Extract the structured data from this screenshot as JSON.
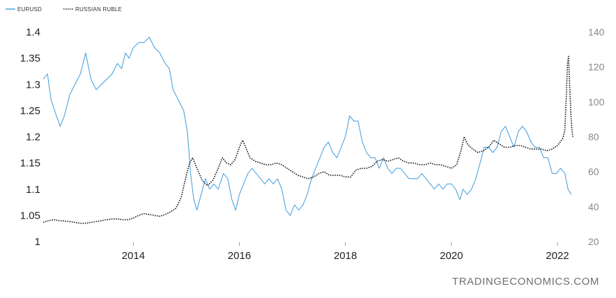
{
  "watermark": "TRADINGECONOMICS.COM",
  "chart_data": {
    "type": "line",
    "xlim": [
      2012.3,
      2022.5
    ],
    "x_ticks": [
      "2014",
      "2016",
      "2018",
      "2020",
      "2022"
    ],
    "y_left": {
      "ylim": [
        1.0,
        1.4
      ],
      "ticks": [
        "1",
        "1.05",
        "1.1",
        "1.15",
        "1.2",
        "1.25",
        "1.3",
        "1.35",
        "1.4"
      ]
    },
    "y_right": {
      "ylim": [
        20,
        140
      ],
      "ticks": [
        "20",
        "40",
        "60",
        "80",
        "100",
        "120",
        "140"
      ]
    },
    "grid": false,
    "legend_position": "top-left",
    "series": [
      {
        "name": "EURUSD",
        "axis": "left",
        "color": "#4da3e0",
        "style": "solid",
        "points": [
          [
            2012.3,
            1.31
          ],
          [
            2012.38,
            1.32
          ],
          [
            2012.45,
            1.27
          ],
          [
            2012.55,
            1.24
          ],
          [
            2012.62,
            1.22
          ],
          [
            2012.7,
            1.24
          ],
          [
            2012.8,
            1.28
          ],
          [
            2012.9,
            1.3
          ],
          [
            2013.0,
            1.32
          ],
          [
            2013.1,
            1.36
          ],
          [
            2013.2,
            1.31
          ],
          [
            2013.3,
            1.29
          ],
          [
            2013.4,
            1.3
          ],
          [
            2013.5,
            1.31
          ],
          [
            2013.6,
            1.32
          ],
          [
            2013.7,
            1.34
          ],
          [
            2013.78,
            1.33
          ],
          [
            2013.85,
            1.36
          ],
          [
            2013.92,
            1.35
          ],
          [
            2014.0,
            1.37
          ],
          [
            2014.1,
            1.38
          ],
          [
            2014.2,
            1.38
          ],
          [
            2014.3,
            1.39
          ],
          [
            2014.4,
            1.37
          ],
          [
            2014.5,
            1.36
          ],
          [
            2014.6,
            1.34
          ],
          [
            2014.68,
            1.33
          ],
          [
            2014.75,
            1.29
          ],
          [
            2014.85,
            1.27
          ],
          [
            2014.95,
            1.25
          ],
          [
            2015.02,
            1.21
          ],
          [
            2015.08,
            1.13
          ],
          [
            2015.14,
            1.08
          ],
          [
            2015.2,
            1.06
          ],
          [
            2015.28,
            1.09
          ],
          [
            2015.36,
            1.12
          ],
          [
            2015.44,
            1.1
          ],
          [
            2015.52,
            1.11
          ],
          [
            2015.6,
            1.1
          ],
          [
            2015.7,
            1.13
          ],
          [
            2015.78,
            1.12
          ],
          [
            2015.86,
            1.08
          ],
          [
            2015.93,
            1.06
          ],
          [
            2016.0,
            1.09
          ],
          [
            2016.08,
            1.11
          ],
          [
            2016.16,
            1.13
          ],
          [
            2016.24,
            1.14
          ],
          [
            2016.32,
            1.13
          ],
          [
            2016.4,
            1.12
          ],
          [
            2016.48,
            1.11
          ],
          [
            2016.56,
            1.12
          ],
          [
            2016.64,
            1.11
          ],
          [
            2016.72,
            1.12
          ],
          [
            2016.8,
            1.1
          ],
          [
            2016.88,
            1.06
          ],
          [
            2016.96,
            1.05
          ],
          [
            2017.04,
            1.07
          ],
          [
            2017.12,
            1.06
          ],
          [
            2017.2,
            1.07
          ],
          [
            2017.28,
            1.09
          ],
          [
            2017.36,
            1.12
          ],
          [
            2017.44,
            1.14
          ],
          [
            2017.52,
            1.16
          ],
          [
            2017.6,
            1.18
          ],
          [
            2017.68,
            1.19
          ],
          [
            2017.76,
            1.17
          ],
          [
            2017.84,
            1.16
          ],
          [
            2017.92,
            1.18
          ],
          [
            2018.0,
            1.2
          ],
          [
            2018.08,
            1.24
          ],
          [
            2018.16,
            1.23
          ],
          [
            2018.24,
            1.23
          ],
          [
            2018.32,
            1.19
          ],
          [
            2018.4,
            1.17
          ],
          [
            2018.48,
            1.16
          ],
          [
            2018.56,
            1.16
          ],
          [
            2018.64,
            1.14
          ],
          [
            2018.72,
            1.16
          ],
          [
            2018.8,
            1.14
          ],
          [
            2018.88,
            1.13
          ],
          [
            2018.96,
            1.14
          ],
          [
            2019.04,
            1.14
          ],
          [
            2019.12,
            1.13
          ],
          [
            2019.2,
            1.12
          ],
          [
            2019.28,
            1.12
          ],
          [
            2019.36,
            1.12
          ],
          [
            2019.44,
            1.13
          ],
          [
            2019.52,
            1.12
          ],
          [
            2019.6,
            1.11
          ],
          [
            2019.68,
            1.1
          ],
          [
            2019.76,
            1.11
          ],
          [
            2019.84,
            1.1
          ],
          [
            2019.92,
            1.11
          ],
          [
            2020.0,
            1.11
          ],
          [
            2020.08,
            1.1
          ],
          [
            2020.16,
            1.08
          ],
          [
            2020.22,
            1.1
          ],
          [
            2020.3,
            1.09
          ],
          [
            2020.38,
            1.1
          ],
          [
            2020.46,
            1.12
          ],
          [
            2020.54,
            1.15
          ],
          [
            2020.62,
            1.18
          ],
          [
            2020.7,
            1.18
          ],
          [
            2020.78,
            1.17
          ],
          [
            2020.86,
            1.18
          ],
          [
            2020.94,
            1.21
          ],
          [
            2021.02,
            1.22
          ],
          [
            2021.1,
            1.2
          ],
          [
            2021.18,
            1.18
          ],
          [
            2021.26,
            1.21
          ],
          [
            2021.34,
            1.22
          ],
          [
            2021.42,
            1.21
          ],
          [
            2021.5,
            1.19
          ],
          [
            2021.58,
            1.18
          ],
          [
            2021.66,
            1.18
          ],
          [
            2021.74,
            1.16
          ],
          [
            2021.82,
            1.16
          ],
          [
            2021.9,
            1.13
          ],
          [
            2021.98,
            1.13
          ],
          [
            2022.06,
            1.14
          ],
          [
            2022.14,
            1.13
          ],
          [
            2022.2,
            1.1
          ],
          [
            2022.26,
            1.09
          ]
        ]
      },
      {
        "name": "RUSSIAN RUBLE",
        "axis": "right",
        "color": "#1a1a1a",
        "style": "dotted",
        "points": [
          [
            2012.3,
            31.0
          ],
          [
            2012.4,
            32.0
          ],
          [
            2012.5,
            32.5
          ],
          [
            2012.6,
            32.0
          ],
          [
            2012.7,
            31.8
          ],
          [
            2012.8,
            31.5
          ],
          [
            2012.9,
            31.0
          ],
          [
            2013.0,
            30.5
          ],
          [
            2013.1,
            30.5
          ],
          [
            2013.2,
            31.0
          ],
          [
            2013.3,
            31.5
          ],
          [
            2013.4,
            32.0
          ],
          [
            2013.5,
            32.5
          ],
          [
            2013.6,
            33.0
          ],
          [
            2013.7,
            33.0
          ],
          [
            2013.8,
            32.5
          ],
          [
            2013.9,
            32.5
          ],
          [
            2014.0,
            33.5
          ],
          [
            2014.1,
            35.0
          ],
          [
            2014.2,
            36.0
          ],
          [
            2014.3,
            35.5
          ],
          [
            2014.4,
            35.0
          ],
          [
            2014.5,
            34.5
          ],
          [
            2014.6,
            35.5
          ],
          [
            2014.7,
            37.0
          ],
          [
            2014.8,
            39.0
          ],
          [
            2014.9,
            45.0
          ],
          [
            2015.0,
            58.0
          ],
          [
            2015.06,
            65.0
          ],
          [
            2015.12,
            68.0
          ],
          [
            2015.2,
            62.0
          ],
          [
            2015.3,
            55.0
          ],
          [
            2015.4,
            52.0
          ],
          [
            2015.5,
            55.0
          ],
          [
            2015.6,
            62.0
          ],
          [
            2015.68,
            68.0
          ],
          [
            2015.76,
            65.0
          ],
          [
            2015.84,
            64.0
          ],
          [
            2015.92,
            67.0
          ],
          [
            2016.0,
            74.0
          ],
          [
            2016.06,
            78.0
          ],
          [
            2016.12,
            74.0
          ],
          [
            2016.2,
            68.0
          ],
          [
            2016.3,
            66.0
          ],
          [
            2016.4,
            65.0
          ],
          [
            2016.5,
            64.0
          ],
          [
            2016.6,
            64.0
          ],
          [
            2016.7,
            65.0
          ],
          [
            2016.8,
            64.0
          ],
          [
            2016.9,
            62.0
          ],
          [
            2017.0,
            60.0
          ],
          [
            2017.1,
            58.0
          ],
          [
            2017.2,
            57.0
          ],
          [
            2017.3,
            56.0
          ],
          [
            2017.4,
            57.0
          ],
          [
            2017.5,
            59.0
          ],
          [
            2017.6,
            60.0
          ],
          [
            2017.7,
            58.0
          ],
          [
            2017.8,
            58.0
          ],
          [
            2017.9,
            58.0
          ],
          [
            2018.0,
            57.0
          ],
          [
            2018.1,
            57.0
          ],
          [
            2018.2,
            61.0
          ],
          [
            2018.3,
            62.0
          ],
          [
            2018.4,
            62.0
          ],
          [
            2018.5,
            63.0
          ],
          [
            2018.6,
            66.0
          ],
          [
            2018.7,
            67.0
          ],
          [
            2018.8,
            66.0
          ],
          [
            2018.9,
            67.0
          ],
          [
            2019.0,
            68.0
          ],
          [
            2019.1,
            66.0
          ],
          [
            2019.2,
            65.0
          ],
          [
            2019.3,
            65.0
          ],
          [
            2019.4,
            64.0
          ],
          [
            2019.5,
            64.0
          ],
          [
            2019.6,
            65.0
          ],
          [
            2019.7,
            64.0
          ],
          [
            2019.8,
            64.0
          ],
          [
            2019.9,
            63.0
          ],
          [
            2020.0,
            62.0
          ],
          [
            2020.1,
            64.0
          ],
          [
            2020.18,
            72.0
          ],
          [
            2020.24,
            80.0
          ],
          [
            2020.3,
            76.0
          ],
          [
            2020.4,
            73.0
          ],
          [
            2020.5,
            71.0
          ],
          [
            2020.6,
            72.0
          ],
          [
            2020.7,
            74.0
          ],
          [
            2020.8,
            78.0
          ],
          [
            2020.9,
            76.0
          ],
          [
            2021.0,
            74.0
          ],
          [
            2021.1,
            74.0
          ],
          [
            2021.2,
            75.0
          ],
          [
            2021.3,
            75.0
          ],
          [
            2021.4,
            74.0
          ],
          [
            2021.5,
            73.0
          ],
          [
            2021.6,
            73.0
          ],
          [
            2021.7,
            73.0
          ],
          [
            2021.8,
            72.0
          ],
          [
            2021.9,
            73.0
          ],
          [
            2022.0,
            75.0
          ],
          [
            2022.05,
            77.0
          ],
          [
            2022.1,
            79.0
          ],
          [
            2022.14,
            84.0
          ],
          [
            2022.17,
            105.0
          ],
          [
            2022.19,
            122.0
          ],
          [
            2022.21,
            126.0
          ],
          [
            2022.23,
            110.0
          ],
          [
            2022.25,
            95.0
          ],
          [
            2022.27,
            85.0
          ],
          [
            2022.29,
            80.0
          ]
        ]
      }
    ]
  }
}
